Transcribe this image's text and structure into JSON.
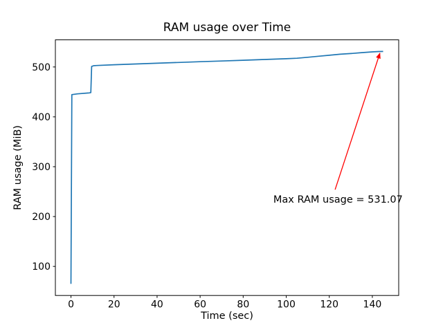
{
  "figure": {
    "background": "#ffffff"
  },
  "chart_data": {
    "type": "line",
    "title": "RAM usage over Time",
    "xlabel": "Time (sec)",
    "ylabel": "RAM usage (MiB)",
    "x_ticks": [
      0,
      20,
      40,
      60,
      80,
      100,
      120,
      140
    ],
    "y_ticks": [
      100,
      200,
      300,
      400,
      500
    ],
    "xlim": [
      -7.25,
      152.25
    ],
    "ylim": [
      41.7,
      554.4
    ],
    "grid": false,
    "legend": "none",
    "series": [
      {
        "name": "RAM usage",
        "color": "#1f77b4",
        "points": [
          [
            0,
            65
          ],
          [
            0.4,
            444.5
          ],
          [
            3,
            446
          ],
          [
            8.5,
            448
          ],
          [
            9.2,
            448.5
          ],
          [
            9.6,
            501
          ],
          [
            10.5,
            502.5
          ],
          [
            12,
            503
          ],
          [
            20,
            504.5
          ],
          [
            30,
            506
          ],
          [
            40,
            507.5
          ],
          [
            50,
            509
          ],
          [
            60,
            510.5
          ],
          [
            70,
            512
          ],
          [
            80,
            513.5
          ],
          [
            90,
            515
          ],
          [
            100,
            516.5
          ],
          [
            105,
            517.5
          ],
          [
            110,
            519.5
          ],
          [
            115,
            521.5
          ],
          [
            120,
            523.5
          ],
          [
            125,
            525.5
          ],
          [
            130,
            527
          ],
          [
            135,
            528.7
          ],
          [
            140,
            530.2
          ],
          [
            143,
            531
          ],
          [
            145,
            531.07
          ]
        ]
      }
    ],
    "annotation": {
      "text": "Max RAM usage = 531.07",
      "max_value": 531.07,
      "color": "#ff0000",
      "text_xy": [
        94,
        228
      ],
      "arrow_from_xy": [
        122.7,
        254
      ],
      "arrow_to_xy": [
        143.5,
        527.5
      ]
    }
  }
}
